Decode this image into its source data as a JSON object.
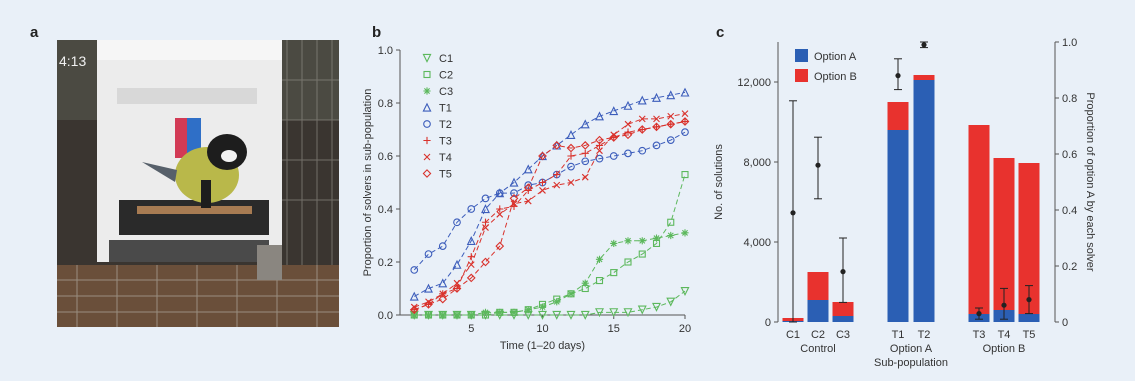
{
  "panels": {
    "a": "a",
    "b": "b",
    "c": "c"
  },
  "photo": {
    "timestamp": "4:13"
  },
  "chart_data": [
    {
      "type": "line",
      "panel": "b",
      "xlabel": "Time (1–20 days)",
      "ylabel": "Proportion of solvers in sub-population",
      "xlim": [
        0,
        20
      ],
      "ylim": [
        0,
        1.0
      ],
      "xticks": [
        5,
        10,
        15,
        20
      ],
      "yticks": [
        "0.0",
        "0.2",
        "0.4",
        "0.6",
        "0.8",
        "1.0"
      ],
      "x": [
        1,
        2,
        3,
        4,
        5,
        6,
        7,
        8,
        9,
        10,
        11,
        12,
        13,
        14,
        15,
        16,
        17,
        18,
        19,
        20
      ],
      "legend_position": "top-left",
      "series": [
        {
          "name": "C1",
          "color": "#5cb85c",
          "marker": "triangle-down",
          "values": [
            0,
            0,
            0,
            0,
            0,
            0,
            0,
            0,
            0,
            0,
            0,
            0,
            0,
            0.01,
            0.01,
            0.01,
            0.02,
            0.03,
            0.05,
            0.09
          ]
        },
        {
          "name": "C2",
          "color": "#5cb85c",
          "marker": "square",
          "values": [
            0,
            0,
            0,
            0,
            0,
            0,
            0.01,
            0.01,
            0.02,
            0.04,
            0.06,
            0.08,
            0.1,
            0.13,
            0.16,
            0.2,
            0.23,
            0.27,
            0.35,
            0.53
          ]
        },
        {
          "name": "C3",
          "color": "#5cb85c",
          "marker": "star",
          "values": [
            0,
            0,
            0,
            0,
            0,
            0.01,
            0.01,
            0.01,
            0.02,
            0.03,
            0.05,
            0.08,
            0.12,
            0.21,
            0.27,
            0.28,
            0.28,
            0.29,
            0.3,
            0.31
          ]
        },
        {
          "name": "T1",
          "color": "#3c5dbb",
          "marker": "triangle-up",
          "values": [
            0.07,
            0.1,
            0.12,
            0.19,
            0.28,
            0.4,
            0.46,
            0.5,
            0.55,
            0.6,
            0.64,
            0.68,
            0.72,
            0.75,
            0.77,
            0.79,
            0.81,
            0.82,
            0.83,
            0.84
          ]
        },
        {
          "name": "T2",
          "color": "#3c5dbb",
          "marker": "circle",
          "values": [
            0.17,
            0.23,
            0.26,
            0.35,
            0.4,
            0.44,
            0.46,
            0.46,
            0.49,
            0.5,
            0.53,
            0.56,
            0.58,
            0.59,
            0.6,
            0.61,
            0.62,
            0.64,
            0.66,
            0.69
          ]
        },
        {
          "name": "T3",
          "color": "#d9322c",
          "marker": "plus",
          "values": [
            0.02,
            0.04,
            0.08,
            0.1,
            0.22,
            0.35,
            0.4,
            0.41,
            0.47,
            0.5,
            0.53,
            0.6,
            0.61,
            0.64,
            0.67,
            0.69,
            0.7,
            0.71,
            0.72,
            0.73
          ]
        },
        {
          "name": "T4",
          "color": "#d9322c",
          "marker": "x",
          "values": [
            0.03,
            0.05,
            0.08,
            0.12,
            0.19,
            0.33,
            0.38,
            0.42,
            0.43,
            0.47,
            0.49,
            0.5,
            0.52,
            0.62,
            0.68,
            0.72,
            0.74,
            0.74,
            0.75,
            0.76
          ]
        },
        {
          "name": "T5",
          "color": "#d9322c",
          "marker": "diamond",
          "values": [
            0.02,
            0.04,
            0.06,
            0.1,
            0.14,
            0.2,
            0.26,
            0.44,
            0.48,
            0.6,
            0.64,
            0.63,
            0.64,
            0.66,
            0.67,
            0.68,
            0.7,
            0.71,
            0.72,
            0.73
          ]
        }
      ]
    },
    {
      "type": "bar",
      "panel": "c",
      "stacked": true,
      "ylabel": "No. of solutions",
      "y2label": "Proportion of option A by each solver",
      "xlabel": "Sub-population",
      "ylim": [
        0,
        14000
      ],
      "y2lim": [
        0,
        1.0
      ],
      "yticks": [
        "0",
        "4,000",
        "8,000",
        "12,000"
      ],
      "y2ticks": [
        "0",
        "0.2",
        "0.4",
        "0.6",
        "0.8",
        "1.0"
      ],
      "categories": [
        "C1",
        "C2",
        "C3",
        "T1",
        "T2",
        "T3",
        "T4",
        "T5"
      ],
      "groups": [
        {
          "label": "Control",
          "members": [
            "C1",
            "C2",
            "C3"
          ]
        },
        {
          "label": "Option A",
          "members": [
            "T1",
            "T2"
          ]
        },
        {
          "label": "Option B",
          "members": [
            "T3",
            "T4",
            "T5"
          ]
        }
      ],
      "legend_position": "top-left",
      "series": [
        {
          "name": "Option A",
          "color": "#2b5fb4",
          "values": [
            50,
            1100,
            300,
            9600,
            12100,
            400,
            600,
            400
          ]
        },
        {
          "name": "Option B",
          "color": "#e8322e",
          "values": [
            150,
            1400,
            700,
            1400,
            250,
            9450,
            7600,
            7550
          ]
        }
      ],
      "proportion_option_a": {
        "mean": [
          0.39,
          0.56,
          0.18,
          0.88,
          null,
          0.03,
          0.06,
          0.08
        ],
        "lower": [
          0.0,
          0.44,
          0.07,
          0.83,
          null,
          0.01,
          0.01,
          0.03
        ],
        "upper": [
          0.79,
          0.66,
          0.3,
          0.94,
          null,
          0.05,
          0.12,
          0.13
        ]
      },
      "extra_error_bar": {
        "value": 0.99,
        "lower": 0.98,
        "upper": 1.0
      }
    }
  ]
}
